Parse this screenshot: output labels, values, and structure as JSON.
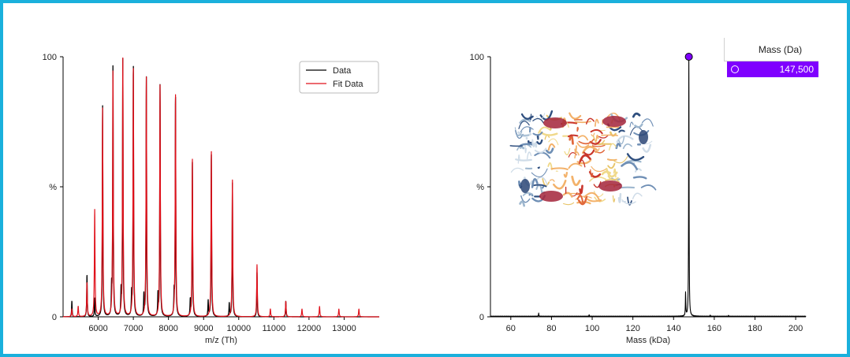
{
  "colors": {
    "frame": "#1ab0dc",
    "data": "#000000",
    "fit": "#e0101a",
    "marker": "#7f00ff"
  },
  "chart_data": [
    {
      "type": "line",
      "xlabel": "m/z (Th)",
      "ylabel": "%",
      "xlim": [
        5000,
        14000
      ],
      "ylim": [
        0,
        100
      ],
      "xticks": [
        6000,
        7000,
        8000,
        9000,
        10000,
        11000,
        12000,
        13000
      ],
      "yticks": [
        {
          "value": 0,
          "label": "0"
        },
        {
          "value": 50,
          "label": "%"
        },
        {
          "value": 100,
          "label": "100"
        }
      ],
      "legend": {
        "position": "top-right",
        "entries": [
          "Data",
          "Fit Data"
        ]
      },
      "series": [
        {
          "name": "Data",
          "peaks": [
            {
              "mz": 5250,
              "y": 6
            },
            {
              "mz": 5680,
              "y": 16
            },
            {
              "mz": 5900,
              "y": 7
            },
            {
              "mz": 6125,
              "y": 81
            },
            {
              "mz": 6380,
              "y": 10
            },
            {
              "mz": 6420,
              "y": 97
            },
            {
              "mz": 6650,
              "y": 9
            },
            {
              "mz": 6700,
              "y": 100
            },
            {
              "mz": 6950,
              "y": 8
            },
            {
              "mz": 7000,
              "y": 97
            },
            {
              "mz": 7300,
              "y": 8
            },
            {
              "mz": 7370,
              "y": 92
            },
            {
              "mz": 7700,
              "y": 8
            },
            {
              "mz": 7760,
              "y": 89
            },
            {
              "mz": 8160,
              "y": 8
            },
            {
              "mz": 8200,
              "y": 85
            },
            {
              "mz": 8620,
              "y": 6
            },
            {
              "mz": 8680,
              "y": 60
            },
            {
              "mz": 9130,
              "y": 6
            },
            {
              "mz": 9220,
              "y": 63
            },
            {
              "mz": 9730,
              "y": 5
            },
            {
              "mz": 9820,
              "y": 52
            },
            {
              "mz": 10520,
              "y": 17
            },
            {
              "mz": 11340,
              "y": 6
            }
          ]
        },
        {
          "name": "Fit Data",
          "peaks": [
            {
              "mz": 5250,
              "y": 3
            },
            {
              "mz": 5430,
              "y": 4
            },
            {
              "mz": 5680,
              "y": 13
            },
            {
              "mz": 5900,
              "y": 41
            },
            {
              "mz": 6125,
              "y": 80
            },
            {
              "mz": 6420,
              "y": 95
            },
            {
              "mz": 6700,
              "y": 100
            },
            {
              "mz": 7000,
              "y": 96
            },
            {
              "mz": 7370,
              "y": 92
            },
            {
              "mz": 7760,
              "y": 89
            },
            {
              "mz": 8200,
              "y": 86
            },
            {
              "mz": 8680,
              "y": 61
            },
            {
              "mz": 9220,
              "y": 64
            },
            {
              "mz": 9820,
              "y": 53
            },
            {
              "mz": 10520,
              "y": 20
            },
            {
              "mz": 10900,
              "y": 3
            },
            {
              "mz": 11340,
              "y": 6
            },
            {
              "mz": 11800,
              "y": 3
            },
            {
              "mz": 12300,
              "y": 4
            },
            {
              "mz": 12850,
              "y": 3
            },
            {
              "mz": 13420,
              "y": 3
            }
          ]
        }
      ]
    },
    {
      "type": "line",
      "xlabel": "Mass (kDa)",
      "ylabel": "%",
      "xlim": [
        50,
        205
      ],
      "ylim": [
        0,
        100
      ],
      "xticks": [
        60,
        80,
        100,
        120,
        140,
        160,
        180,
        200
      ],
      "yticks": [
        {
          "value": 0,
          "label": "0"
        },
        {
          "value": 50,
          "label": "%"
        },
        {
          "value": 100,
          "label": "100"
        }
      ],
      "series": [
        {
          "name": "",
          "peaks": [
            {
              "x": 73.7,
              "y": 1.2
            },
            {
              "x": 98.5,
              "y": 0.6
            },
            {
              "x": 145.9,
              "y": 9
            },
            {
              "x": 147.5,
              "y": 100
            },
            {
              "x": 158,
              "y": 0.5
            },
            {
              "x": 167,
              "y": 0.4
            }
          ]
        }
      ],
      "marker": {
        "x": 147.5,
        "y": 100
      },
      "table": {
        "header": "Mass (Da)",
        "rows": [
          {
            "value": "147,500",
            "selected": true
          }
        ]
      }
    }
  ]
}
